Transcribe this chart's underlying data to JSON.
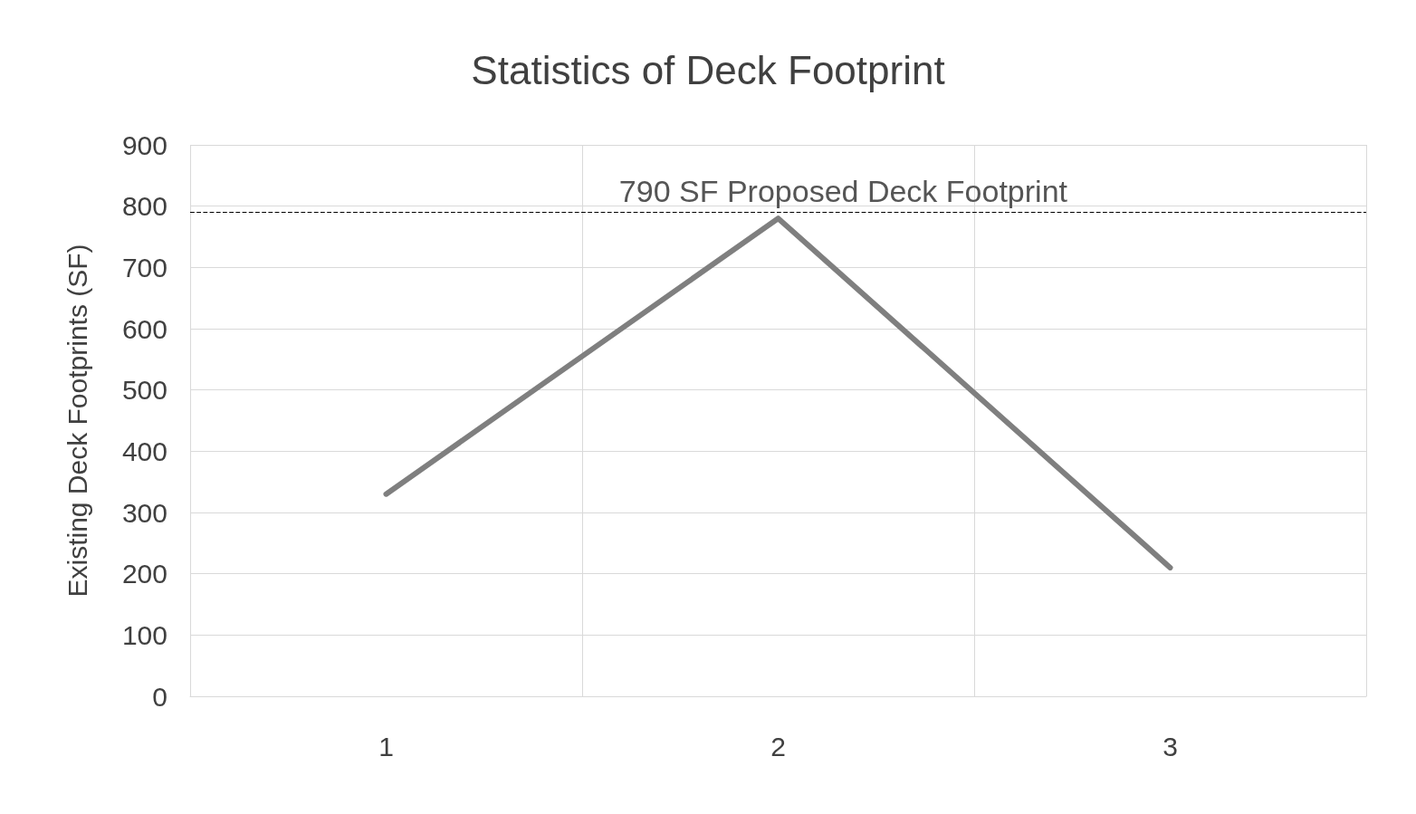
{
  "chart_data": {
    "type": "line",
    "title": "Statistics of Deck Footprint",
    "ylabel": "Existing Deck Footprints (SF)",
    "categories": [
      "1",
      "2",
      "3"
    ],
    "series": [
      {
        "color": "#7f7f7f",
        "values": [
          330,
          780,
          210
        ]
      }
    ],
    "ylim": [
      0,
      900
    ],
    "yticks": [
      0,
      100,
      200,
      300,
      400,
      500,
      600,
      700,
      800,
      900
    ],
    "grid": true,
    "marker": "none",
    "line_style": "solid",
    "ref_lines": [
      {
        "axis": "y",
        "value": 790,
        "label": "790 SF Proposed Deck Footprint",
        "color": "#000000",
        "line_style": "dashed"
      }
    ]
  }
}
